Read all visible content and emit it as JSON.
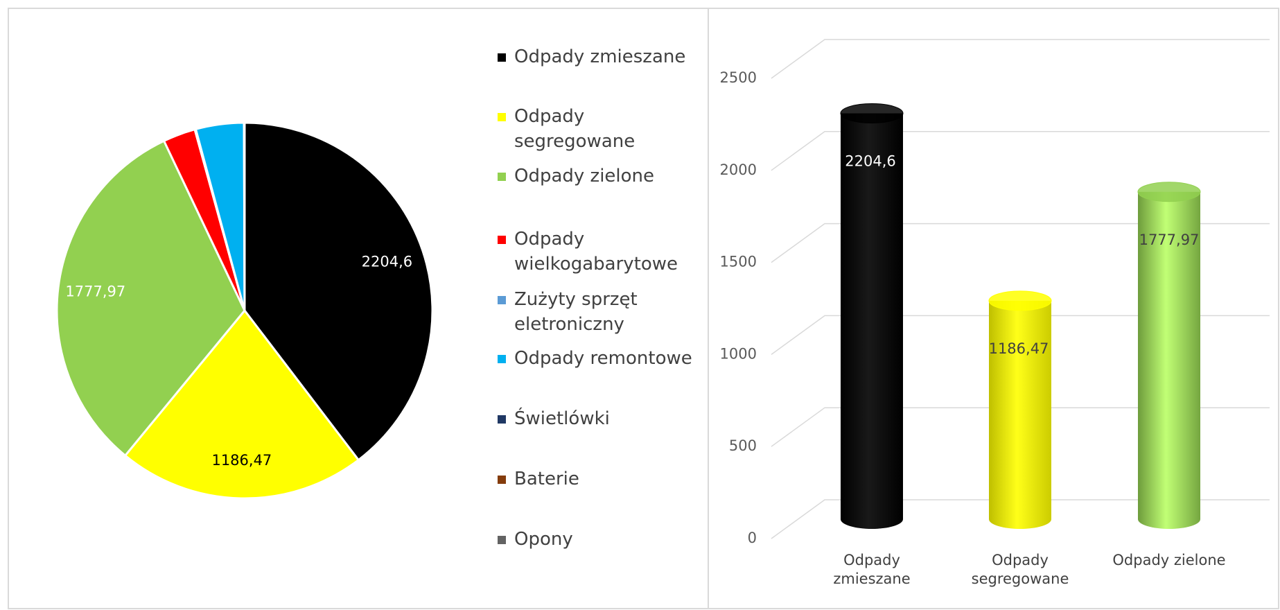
{
  "chart_data": [
    {
      "type": "pie",
      "categories": [
        "Odpady zmieszane",
        "Odpady segregowane",
        "Odpady zielone",
        "Odpady wielkogabarytowe",
        "Zużyty sprzęt eletroniczny",
        "Odpady remontowe",
        "Świetlówki",
        "Baterie",
        "Opony"
      ],
      "values": [
        2204.6,
        1186.47,
        1777.97,
        155,
        5,
        230,
        1,
        1,
        1
      ],
      "value_labels": [
        "2204,6",
        "1186,47",
        "1777,97",
        null,
        null,
        null,
        null,
        null,
        null
      ],
      "colors": [
        "#000000",
        "#ffff00",
        "#92d050",
        "#ff0000",
        "#5b9bd5",
        "#00b0f0",
        "#203864",
        "#843c0c",
        "#636363"
      ]
    },
    {
      "type": "bar",
      "categories": [
        "Odpady zmieszane",
        "Odpady segregowane",
        "Odpady zielone"
      ],
      "values": [
        2204.6,
        1186.47,
        1777.97
      ],
      "value_labels": [
        "2204,6",
        "1186,47",
        "1777,97"
      ],
      "colors": [
        "#000000",
        "#ffff00",
        "#92d050"
      ],
      "ylim": [
        0,
        2500
      ],
      "yticks": [
        0,
        500,
        1000,
        1500,
        2000,
        2500
      ],
      "grid": true
    }
  ]
}
